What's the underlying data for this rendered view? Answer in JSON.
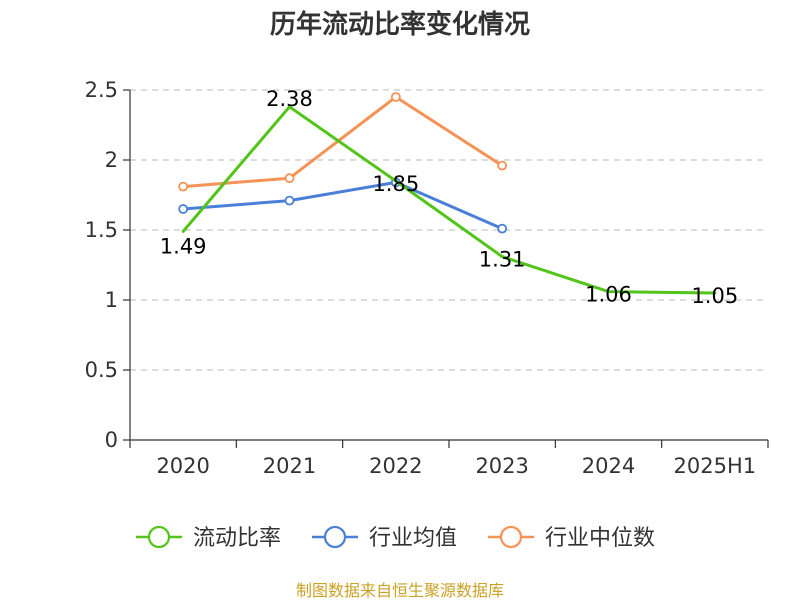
{
  "chart_data": {
    "type": "line",
    "title": "历年流动比率变化情况",
    "categories": [
      "2020",
      "2021",
      "2022",
      "2023",
      "2024",
      "2025H1"
    ],
    "y_ticks": [
      "0",
      "0.5",
      "1",
      "1.5",
      "2",
      "2.5"
    ],
    "ylim": [
      0,
      2.5
    ],
    "grid": true,
    "legend_position": "bottom",
    "series": [
      {
        "name": "流动比率",
        "color": "#52c41a",
        "values": [
          1.49,
          2.38,
          1.85,
          1.31,
          1.06,
          1.05
        ],
        "labels": [
          "1.49",
          "2.38",
          "1.85",
          "1.31",
          "1.06",
          "1.05"
        ]
      },
      {
        "name": "行业均值",
        "color": "#4a7fd8",
        "values": [
          1.65,
          1.71,
          1.84,
          1.51,
          null,
          null
        ]
      },
      {
        "name": "行业中位数",
        "color": "#f59256",
        "values": [
          1.81,
          1.87,
          2.45,
          1.96,
          null,
          null
        ]
      }
    ]
  },
  "source_note": "制图数据来自恒生聚源数据库"
}
